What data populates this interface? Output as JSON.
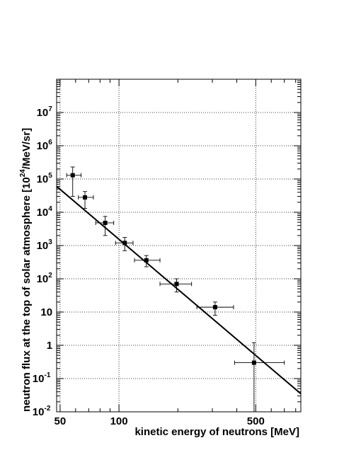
{
  "chart_data": {
    "type": "scatter",
    "title": "",
    "xlabel": "kinetic energy of neutrons [MeV]",
    "ylabel_parts": [
      "neutron flux at the top of solar atmosphere [10",
      "24",
      "/MeV/sr]"
    ],
    "x_scale": "log",
    "y_scale": "log",
    "xlim": [
      48,
      850
    ],
    "ylim": [
      0.01,
      100000000.0
    ],
    "grid": true,
    "x_tick_labels": [
      {
        "value": 50,
        "text": "50"
      },
      {
        "value": 100,
        "text": "100"
      },
      {
        "value": 500,
        "text": "500"
      }
    ],
    "y_tick_labels": [
      {
        "value": 0.01,
        "base": "10",
        "exp": "-2"
      },
      {
        "value": 0.1,
        "base": "10",
        "exp": "-1"
      },
      {
        "value": 1,
        "base": "1",
        "exp": ""
      },
      {
        "value": 10,
        "base": "10",
        "exp": ""
      },
      {
        "value": 100,
        "base": "10",
        "exp": "2"
      },
      {
        "value": 1000,
        "base": "10",
        "exp": "3"
      },
      {
        "value": 10000,
        "base": "10",
        "exp": "4"
      },
      {
        "value": 100000,
        "base": "10",
        "exp": "5"
      },
      {
        "value": 1000000,
        "base": "10",
        "exp": "6"
      },
      {
        "value": 10000000,
        "base": "10",
        "exp": "7"
      }
    ],
    "points": [
      {
        "x": 58,
        "y": 130000,
        "xerr": [
          54,
          64
        ],
        "yerr": [
          30000,
          230000
        ]
      },
      {
        "x": 67,
        "y": 28000,
        "xerr": [
          62,
          74
        ],
        "yerr": [
          13000,
          42000
        ]
      },
      {
        "x": 85,
        "y": 4800,
        "xerr": [
          76,
          94
        ],
        "yerr": [
          2000,
          7500
        ]
      },
      {
        "x": 107,
        "y": 1200,
        "xerr": [
          96,
          118
        ],
        "yerr": [
          700,
          1750
        ]
      },
      {
        "x": 138,
        "y": 360,
        "xerr": [
          120,
          162
        ],
        "yerr": [
          230,
          500
        ]
      },
      {
        "x": 197,
        "y": 70,
        "xerr": [
          162,
          235
        ],
        "yerr": [
          40,
          100
        ]
      },
      {
        "x": 310,
        "y": 14,
        "xerr": [
          250,
          385
        ],
        "yerr": [
          8,
          20
        ]
      },
      {
        "x": 490,
        "y": 0.3,
        "xerr": [
          390,
          700
        ],
        "yerr": [
          0.01,
          1.2
        ]
      }
    ],
    "fit_line": {
      "x": [
        48,
        850
      ],
      "y": [
        60000,
        0.035
      ]
    }
  }
}
